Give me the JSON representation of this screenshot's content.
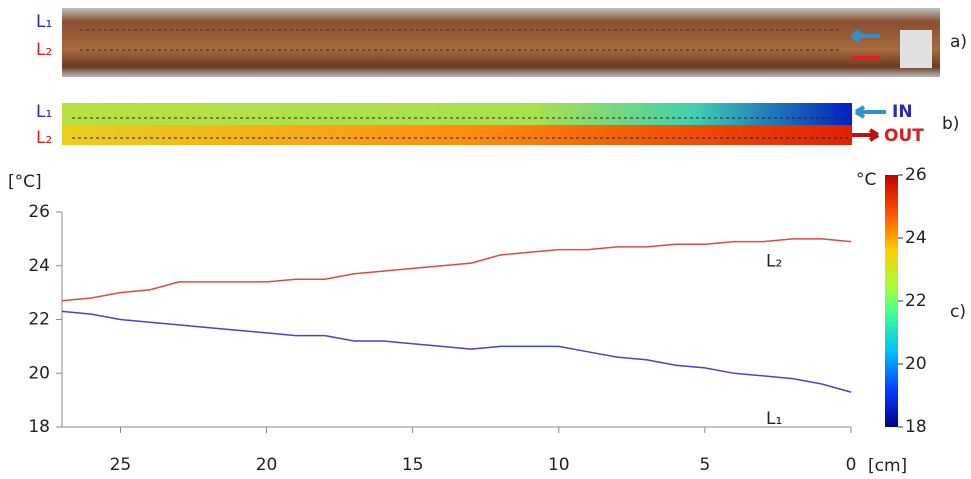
{
  "panels": {
    "a": {
      "label": "a)",
      "lines": [
        "L₁",
        "L₂"
      ]
    },
    "b": {
      "label": "b)",
      "lines": [
        "L₁",
        "L₂"
      ],
      "inlet": "IN",
      "outlet": "OUT"
    }
  },
  "chart_data": {
    "type": "line",
    "panel_label": "c)",
    "y_label": "[°C]",
    "x_label": "[cm]",
    "x": [
      27,
      26,
      25,
      24,
      23,
      22,
      21,
      20,
      19,
      18,
      17,
      16,
      15,
      14,
      13,
      12,
      11,
      10,
      9,
      8,
      7,
      6,
      5,
      4,
      3,
      2,
      1,
      0
    ],
    "series": [
      {
        "name": "L₂",
        "color": "#e04848",
        "values": [
          22.7,
          22.8,
          23.0,
          23.1,
          23.4,
          23.4,
          23.4,
          23.4,
          23.5,
          23.5,
          23.7,
          23.8,
          23.9,
          24.0,
          24.1,
          24.4,
          24.5,
          24.6,
          24.6,
          24.7,
          24.7,
          24.8,
          24.8,
          24.9,
          24.9,
          25.0,
          25.0,
          24.9
        ]
      },
      {
        "name": "L₁",
        "color": "#4545cc",
        "values": [
          22.3,
          22.2,
          22.0,
          21.9,
          21.8,
          21.7,
          21.6,
          21.5,
          21.4,
          21.4,
          21.2,
          21.2,
          21.1,
          21.0,
          20.9,
          21.0,
          21.0,
          21.0,
          20.8,
          20.6,
          20.5,
          20.3,
          20.2,
          20.0,
          19.9,
          19.8,
          19.6,
          19.3
        ]
      }
    ],
    "xlim": [
      27,
      0
    ],
    "ylim": [
      18,
      26
    ],
    "xticks": [
      25,
      20,
      15,
      10,
      5,
      0
    ],
    "yticks": [
      18,
      20,
      22,
      24,
      26
    ],
    "colorbar": {
      "label": "°C",
      "lim": [
        18,
        26
      ],
      "ticks": [
        18,
        20,
        22,
        24,
        26
      ]
    }
  }
}
